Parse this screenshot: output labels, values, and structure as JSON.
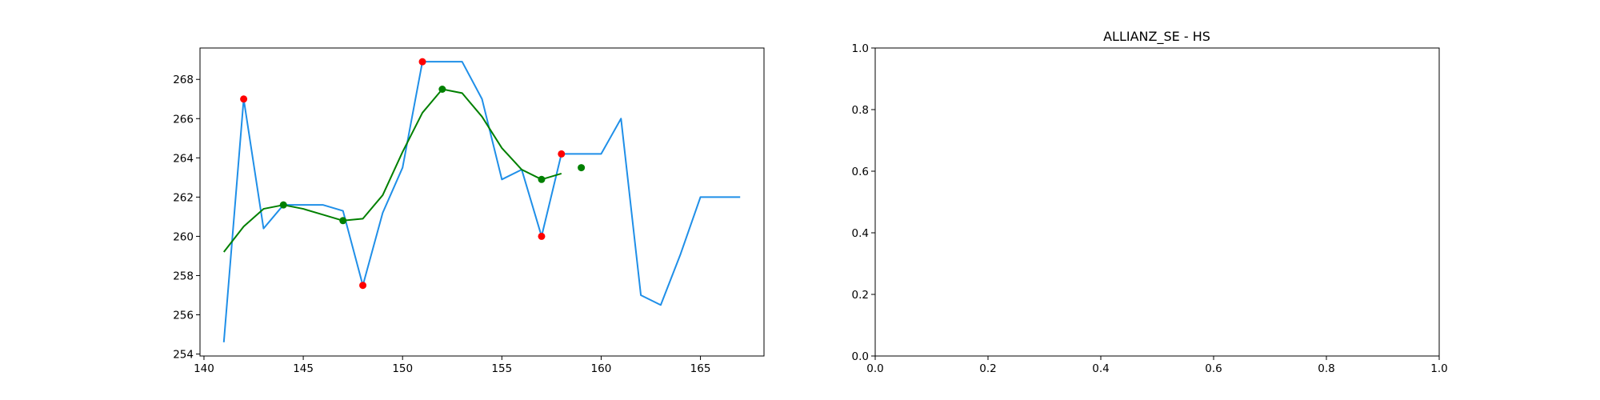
{
  "colors": {
    "price": "#1f8fe8",
    "smoothed": "#008000",
    "extrema": "#ff0000",
    "axes": "#000000",
    "background": "#ffffff"
  },
  "chart_data": [
    {
      "type": "line",
      "title": "",
      "xlabel": "",
      "ylabel": "",
      "xlim": [
        139.8,
        168.2
      ],
      "ylim": [
        253.9,
        269.6
      ],
      "xticks": [
        140,
        145,
        150,
        155,
        160,
        165
      ],
      "yticks": [
        254,
        256,
        258,
        260,
        262,
        264,
        266,
        268
      ],
      "grid": false,
      "series": [
        {
          "style": "line",
          "color": "price",
          "x": [
            141,
            142,
            143,
            144,
            145,
            146,
            147,
            148,
            149,
            150,
            151,
            152,
            153,
            154,
            155,
            156,
            157,
            158,
            159,
            160,
            161,
            162,
            163,
            164,
            165,
            166,
            167
          ],
          "y": [
            254.6,
            267.0,
            260.4,
            261.6,
            261.6,
            261.6,
            261.3,
            257.5,
            261.2,
            263.5,
            268.9,
            268.9,
            268.9,
            267.0,
            262.9,
            263.4,
            260.0,
            264.2,
            264.2,
            264.2,
            266.0,
            257.0,
            256.5,
            259.1,
            262.0,
            262.0,
            262.0
          ]
        },
        {
          "style": "line",
          "color": "smoothed",
          "x": [
            141,
            142,
            143,
            144,
            145,
            146,
            147,
            148,
            149,
            150,
            151,
            152,
            153,
            154,
            155,
            156,
            157,
            158
          ],
          "y": [
            259.2,
            260.5,
            261.4,
            261.6,
            261.4,
            261.1,
            260.8,
            260.9,
            262.1,
            264.3,
            266.3,
            267.5,
            267.3,
            266.1,
            264.5,
            263.4,
            262.9,
            263.2
          ]
        },
        {
          "style": "scatter",
          "color": "extrema",
          "x": [
            142,
            148,
            151,
            157,
            158
          ],
          "y": [
            267.0,
            257.5,
            268.9,
            260.0,
            264.2
          ]
        },
        {
          "style": "scatter",
          "color": "smoothed",
          "x": [
            144,
            147,
            152,
            157,
            159
          ],
          "y": [
            261.6,
            260.8,
            267.5,
            262.9,
            263.5
          ]
        }
      ]
    },
    {
      "type": "line",
      "title": "ALLIANZ_SE - HS",
      "xlabel": "",
      "ylabel": "",
      "xlim": [
        0,
        1
      ],
      "ylim": [
        0,
        1
      ],
      "xticks": [
        0.0,
        0.2,
        0.4,
        0.6,
        0.8,
        1.0
      ],
      "yticks": [
        0.0,
        0.2,
        0.4,
        0.6,
        0.8,
        1.0
      ],
      "xtick_labels": [
        "0.0",
        "0.2",
        "0.4",
        "0.6",
        "0.8",
        "1.0"
      ],
      "ytick_labels": [
        "0.0",
        "0.2",
        "0.4",
        "0.6",
        "0.8",
        "1.0"
      ],
      "grid": false,
      "series": []
    }
  ]
}
